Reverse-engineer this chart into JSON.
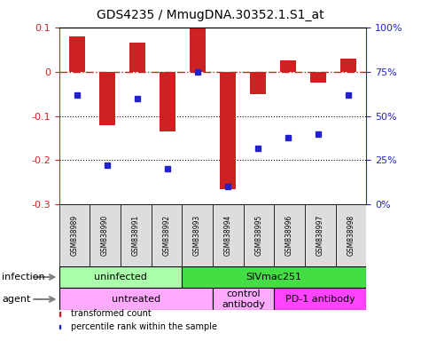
{
  "title": "GDS4235 / MmugDNA.30352.1.S1_at",
  "samples": [
    "GSM838989",
    "GSM838990",
    "GSM838991",
    "GSM838992",
    "GSM838993",
    "GSM838994",
    "GSM838995",
    "GSM838996",
    "GSM838997",
    "GSM838998"
  ],
  "bar_values": [
    0.08,
    -0.12,
    0.065,
    -0.135,
    0.1,
    -0.265,
    -0.05,
    0.025,
    -0.025,
    0.03
  ],
  "dot_values": [
    62,
    22,
    60,
    20,
    75,
    10,
    32,
    38,
    40,
    62
  ],
  "bar_color": "#cc2222",
  "dot_color": "#2222cc",
  "ylim_left": [
    -0.3,
    0.1
  ],
  "ylim_right": [
    0,
    100
  ],
  "yticks_left": [
    -0.3,
    -0.2,
    -0.1,
    0.0,
    0.1
  ],
  "ytick_labels_left": [
    "-0.3",
    "-0.2",
    "-0.1",
    "0",
    "0.1"
  ],
  "ytick_vals_right": [
    0,
    25,
    50,
    75,
    100
  ],
  "ytick_labels_right": [
    "0%",
    "25%",
    "50%",
    "75%",
    "100%"
  ],
  "hline_y": 0.0,
  "dotted_lines": [
    -0.1,
    -0.2
  ],
  "infection_groups": [
    {
      "label": "uninfected",
      "start": 0,
      "end": 4,
      "color": "#aaffaa"
    },
    {
      "label": "SIVmac251",
      "start": 4,
      "end": 10,
      "color": "#44dd44"
    }
  ],
  "agent_groups": [
    {
      "label": "untreated",
      "start": 0,
      "end": 5,
      "color": "#ffaaff"
    },
    {
      "label": "control\nantibody",
      "start": 5,
      "end": 7,
      "color": "#ffaaff"
    },
    {
      "label": "PD-1 antibody",
      "start": 7,
      "end": 10,
      "color": "#ff44ff"
    }
  ],
  "legend_items": [
    {
      "label": "transformed count",
      "color": "#cc2222"
    },
    {
      "label": "percentile rank within the sample",
      "color": "#2222cc"
    }
  ],
  "infection_label": "infection",
  "agent_label": "agent",
  "sample_bg_color": "#dddddd",
  "background_color": "#ffffff",
  "left_label_color": "#666666"
}
